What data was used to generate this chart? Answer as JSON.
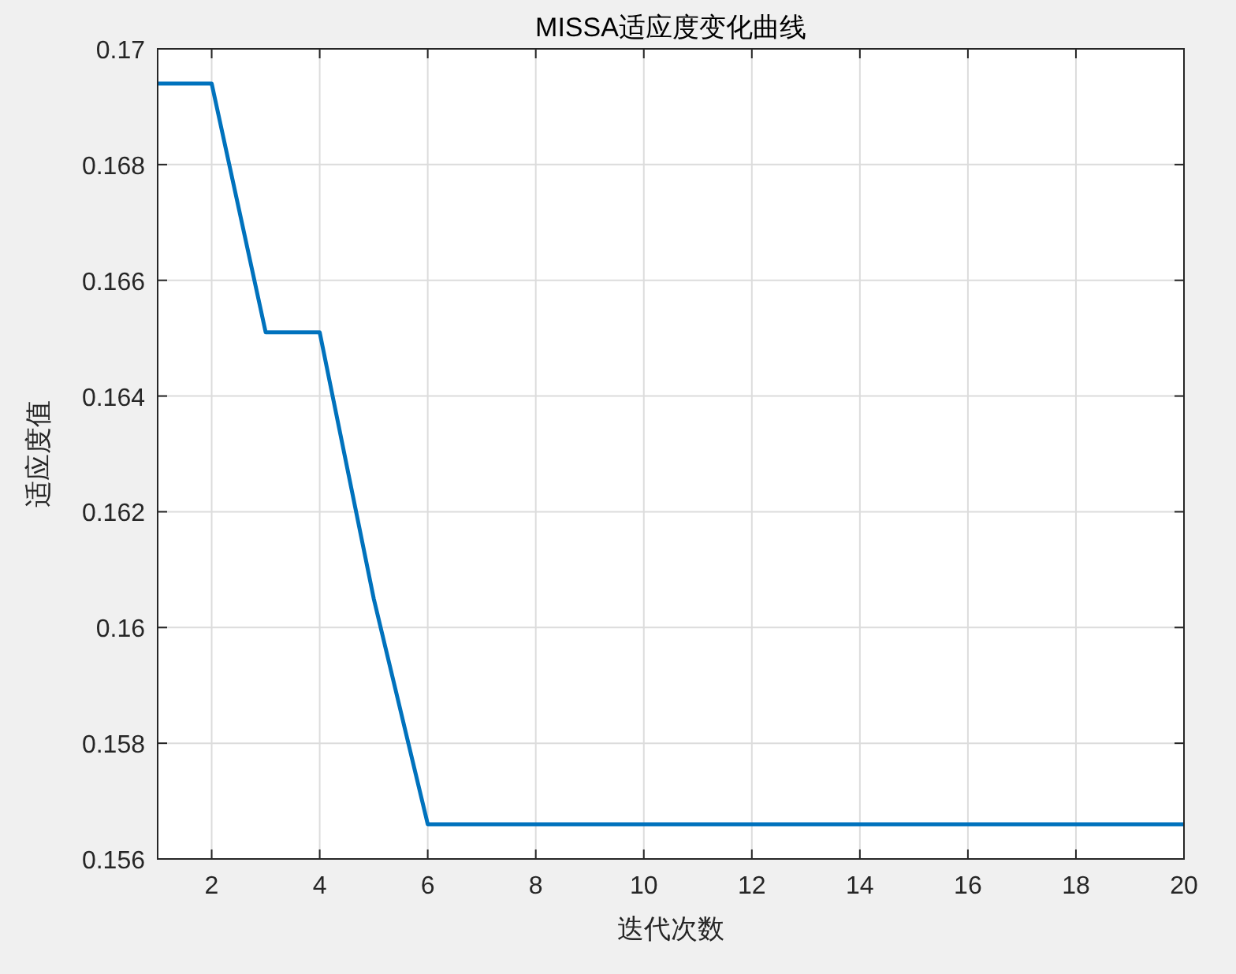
{
  "chart_data": {
    "type": "line",
    "title": "MISSA适应度变化曲线",
    "xlabel": "迭代次数",
    "ylabel": "适应度值",
    "x": [
      1,
      2,
      3,
      4,
      5,
      6,
      7,
      8,
      9,
      10,
      11,
      12,
      13,
      14,
      15,
      16,
      17,
      18,
      19,
      20
    ],
    "series": [
      {
        "color": "#0072bd",
        "values": [
          0.1694,
          0.1694,
          0.1651,
          0.1651,
          0.1605,
          0.1566,
          0.1566,
          0.1566,
          0.1566,
          0.1566,
          0.1566,
          0.1566,
          0.1566,
          0.1566,
          0.1566,
          0.1566,
          0.1566,
          0.1566,
          0.1566,
          0.1566
        ]
      }
    ],
    "xlim": [
      1,
      20
    ],
    "xticks": [
      2,
      4,
      6,
      8,
      10,
      12,
      14,
      16,
      18,
      20
    ],
    "ylim": [
      0.156,
      0.17
    ],
    "yticks": [
      0.156,
      0.158,
      0.16,
      0.162,
      0.164,
      0.166,
      0.168,
      0.17
    ],
    "grid": true,
    "marker": "none",
    "line_style": "solid"
  }
}
